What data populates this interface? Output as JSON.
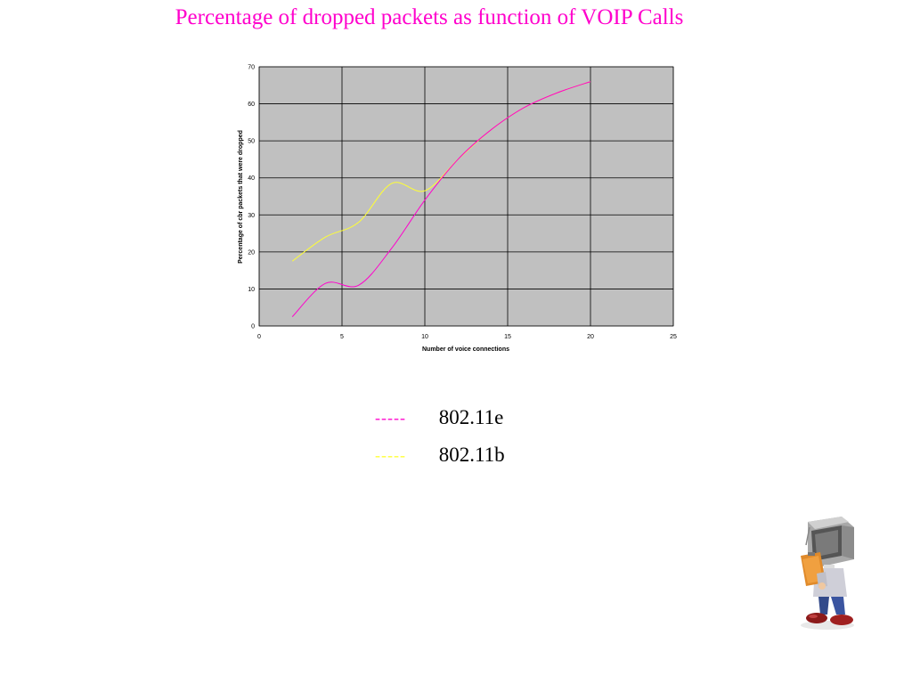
{
  "slide": {
    "title": "Percentage of dropped packets as function of  VOIP Calls"
  },
  "chart_data": {
    "type": "line",
    "title": "",
    "xlabel": "Number of voice connections",
    "ylabel": "Percentage of cbr packets that were dropped",
    "xlim": [
      0,
      25
    ],
    "ylim": [
      0,
      70
    ],
    "xticks": [
      0,
      5,
      10,
      15,
      20,
      25
    ],
    "yticks": [
      0,
      10,
      20,
      30,
      40,
      50,
      60,
      70
    ],
    "grid": true,
    "plot_background": "#c0c0c0",
    "series": [
      {
        "name": "802.11e",
        "color": "#ff00cc",
        "x": [
          2,
          4,
          6,
          8,
          10,
          12,
          14,
          16,
          18,
          20
        ],
        "y": [
          2.5,
          11.5,
          11,
          21,
          34,
          45,
          53,
          59,
          63,
          66
        ]
      },
      {
        "name": "802.11b",
        "color": "#ffff33",
        "x": [
          2,
          4,
          6,
          8,
          10,
          12,
          14,
          16,
          18,
          20
        ],
        "y": [
          17.5,
          24,
          28,
          38.5,
          36.5,
          45,
          53,
          59,
          63,
          66
        ]
      }
    ]
  },
  "legend": {
    "items": [
      {
        "dash": "-----",
        "label": "802.11e",
        "color": "#ff00cc"
      },
      {
        "dash": "-----",
        "label": "802.11b",
        "color": "#ffff33"
      }
    ]
  },
  "mascot": {
    "icon": "computer-head-character-icon"
  }
}
